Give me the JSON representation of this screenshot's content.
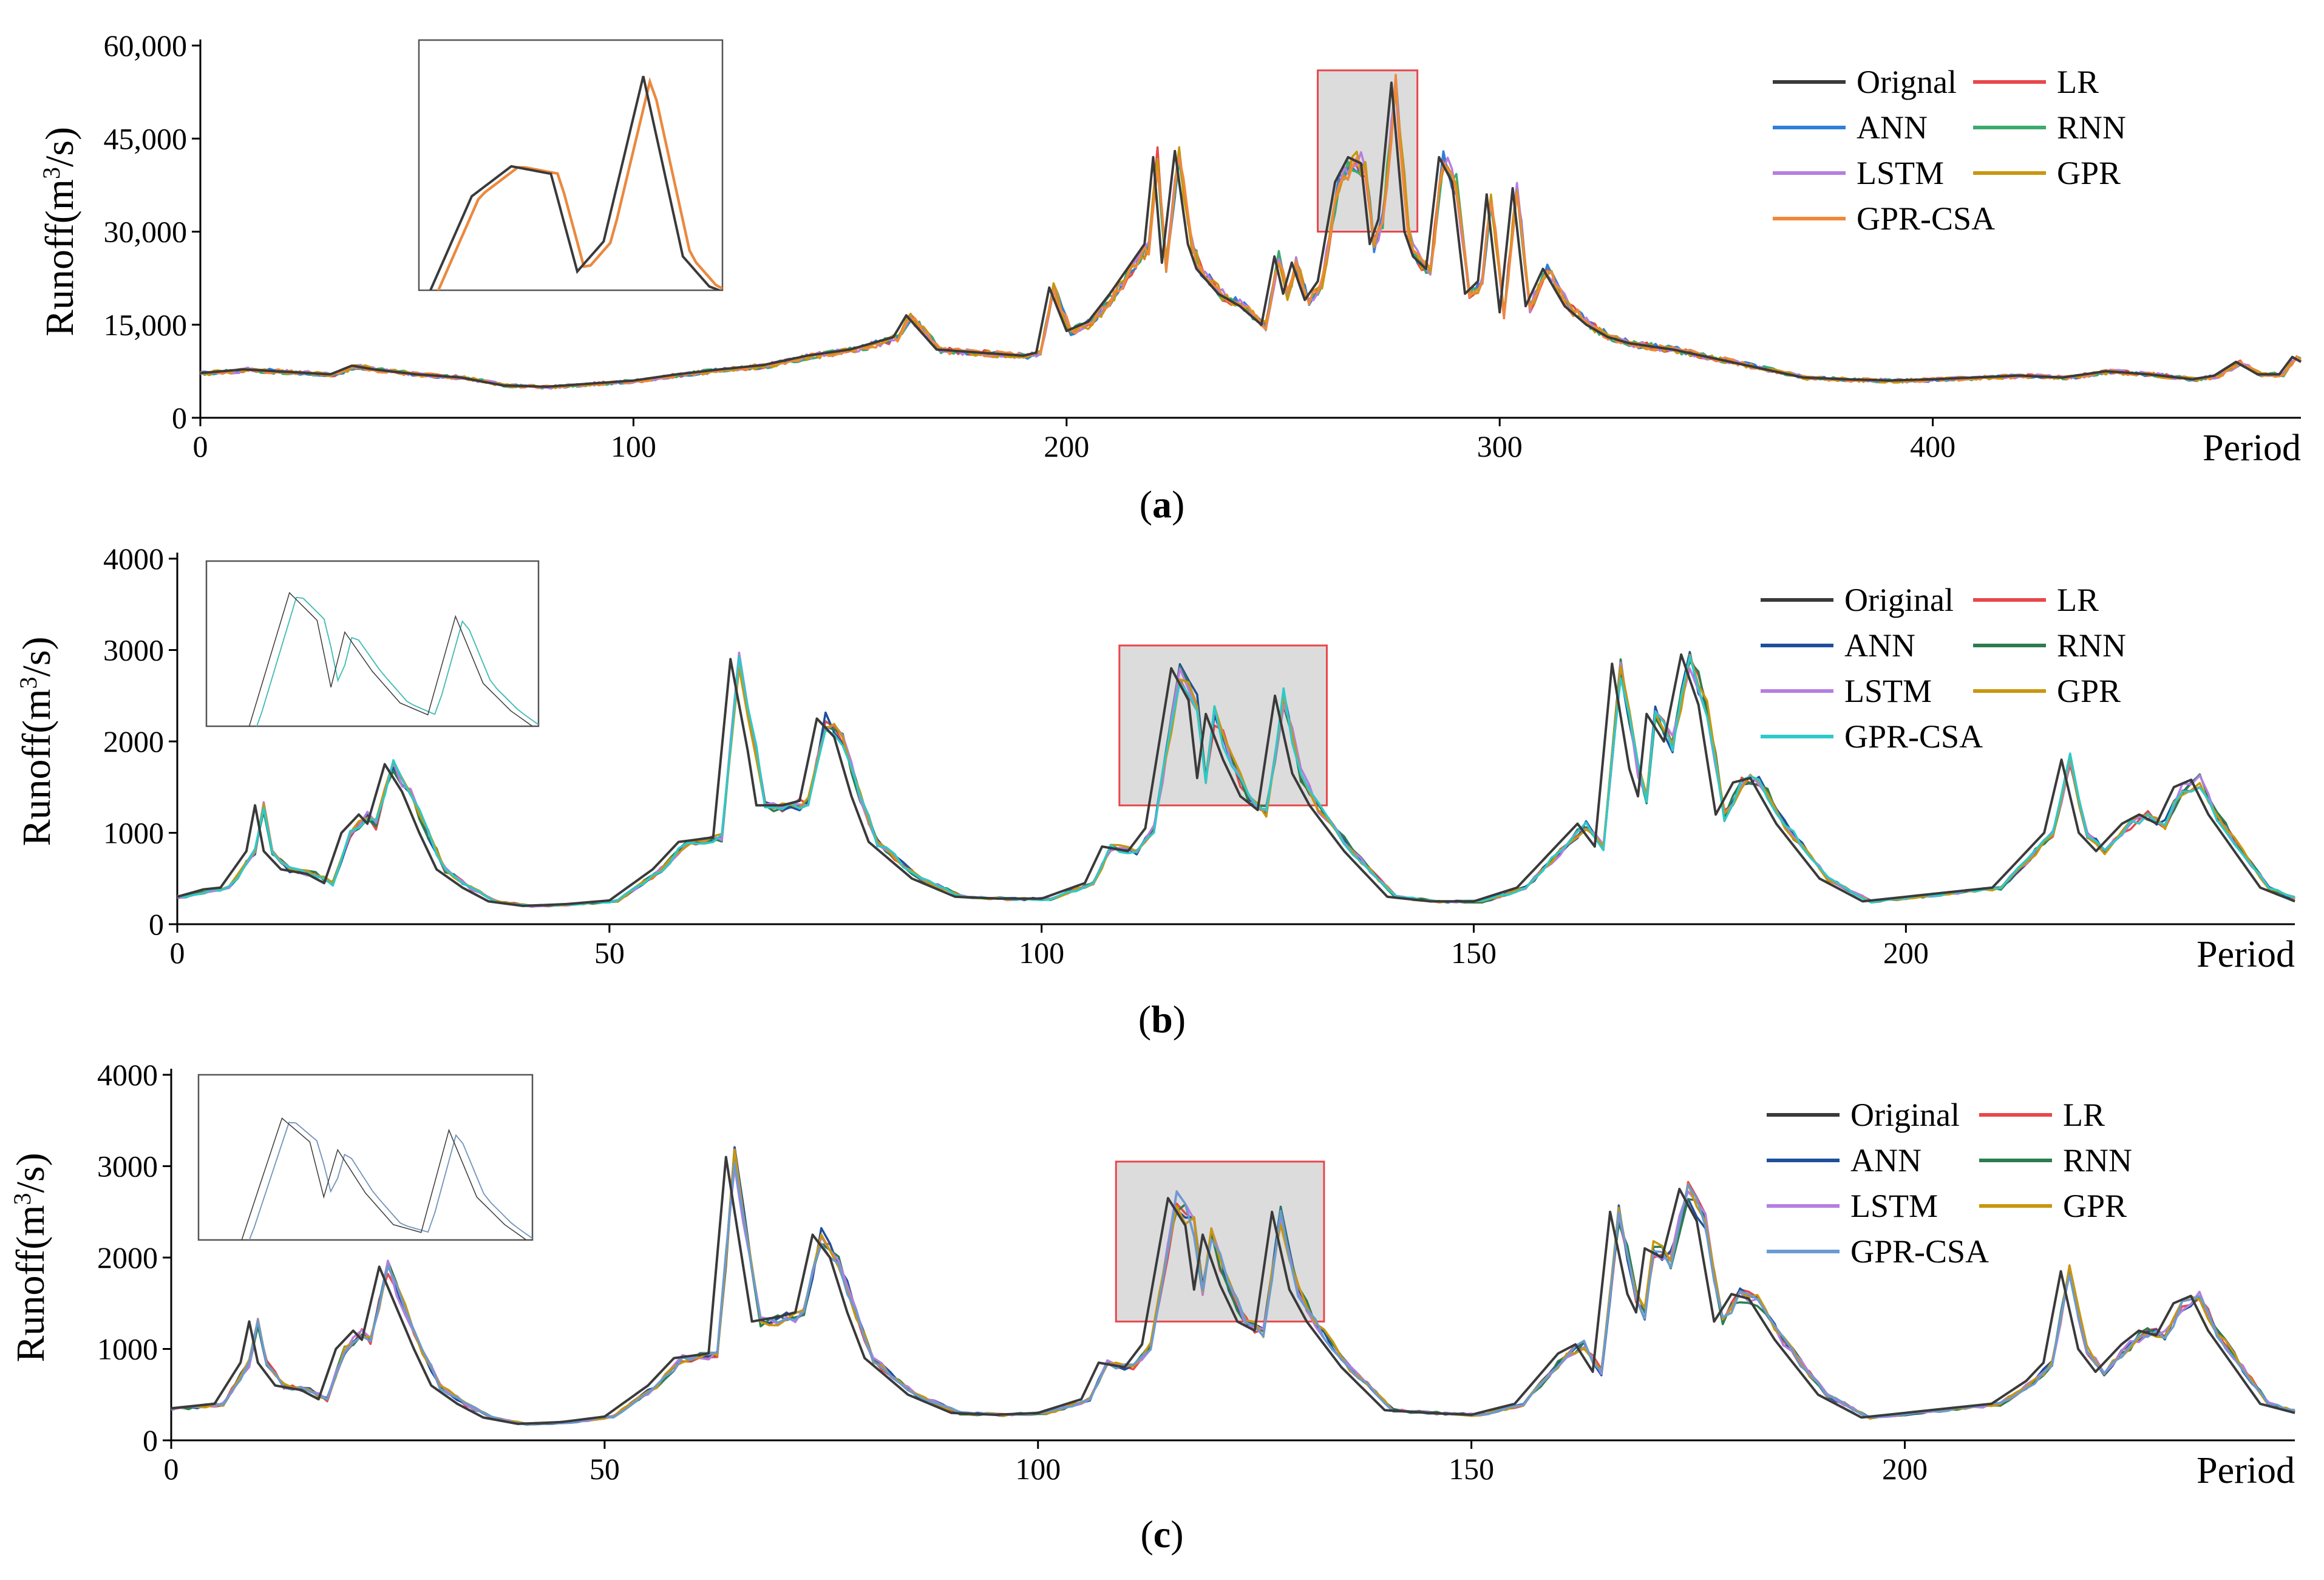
{
  "figure": {
    "panels": [
      {
        "id": "a",
        "caption_letter": "a",
        "ylabel_prefix": "Runoff(m",
        "ylabel_sup": "3",
        "ylabel_suffix": "/s)",
        "xlabel": "Period"
      },
      {
        "id": "b",
        "caption_letter": "b",
        "ylabel_prefix": "Runoff(m",
        "ylabel_sup": "3",
        "ylabel_suffix": "/s)",
        "xlabel": "Period"
      },
      {
        "id": "c",
        "caption_letter": "c",
        "ylabel_prefix": "Runoff(m",
        "ylabel_sup": "3",
        "ylabel_suffix": "/s)",
        "xlabel": "Period"
      }
    ]
  },
  "colors": {
    "Original": "#3a3a3a",
    "LR": "#e8474b",
    "ANN_a": "#2f7fd8",
    "ANN_bc": "#1f4e9c",
    "RNN_a": "#3aaa6e",
    "RNN_bc": "#2b7d4f",
    "LSTM": "#b57ee0",
    "GPR": "#c9960e",
    "GPR-CSA_a": "#f0883a",
    "GPR-CSA_b": "#2ec9c9",
    "GPR-CSA_c": "#6a9bd1",
    "highlight_fill": "#dcdcdc",
    "highlight_stroke": "#e8474b",
    "inset_border": "#555555"
  },
  "chart_data": [
    {
      "type": "line",
      "panel": "a",
      "title": "",
      "xlabel": "Period",
      "ylabel": "Runoff(m3/s)",
      "xlim": [
        0,
        485
      ],
      "ylim": [
        0,
        60000
      ],
      "xticks": [
        0,
        100,
        200,
        300,
        400
      ],
      "yticks": [
        0,
        15000,
        30000,
        45000,
        60000
      ],
      "ytick_labels": [
        "0",
        "15,000",
        "30,000",
        "45,000",
        "60,000"
      ],
      "series_names": [
        "Orignal",
        "LR",
        "ANN",
        "RNN",
        "LSTM",
        "GPR",
        "GPR-CSA"
      ],
      "legend": [
        "Orignal",
        "LR",
        "ANN",
        "RNN",
        "LSTM",
        "GPR",
        "GPR-CSA"
      ],
      "legend_position": "top-right",
      "highlight_x_range": [
        258,
        281
      ],
      "highlight_y_range": [
        30000,
        56000
      ],
      "original_keypoints": [
        [
          0,
          7200
        ],
        [
          10,
          7800
        ],
        [
          20,
          7400
        ],
        [
          30,
          7000
        ],
        [
          35,
          8400
        ],
        [
          40,
          7800
        ],
        [
          50,
          7000
        ],
        [
          60,
          6500
        ],
        [
          70,
          5200
        ],
        [
          80,
          5000
        ],
        [
          90,
          5500
        ],
        [
          100,
          6000
        ],
        [
          110,
          7000
        ],
        [
          120,
          7800
        ],
        [
          130,
          8500
        ],
        [
          140,
          10000
        ],
        [
          150,
          11000
        ],
        [
          160,
          13000
        ],
        [
          163,
          16500
        ],
        [
          170,
          11000
        ],
        [
          180,
          10500
        ],
        [
          190,
          10000
        ],
        [
          193,
          10500
        ],
        [
          196,
          21000
        ],
        [
          200,
          14000
        ],
        [
          205,
          15500
        ],
        [
          210,
          20000
        ],
        [
          215,
          25000
        ],
        [
          218,
          28000
        ],
        [
          220,
          42000
        ],
        [
          222,
          25000
        ],
        [
          225,
          43000
        ],
        [
          228,
          28000
        ],
        [
          230,
          24000
        ],
        [
          235,
          20000
        ],
        [
          240,
          18000
        ],
        [
          245,
          15000
        ],
        [
          248,
          26000
        ],
        [
          250,
          20000
        ],
        [
          252,
          25000
        ],
        [
          255,
          19000
        ],
        [
          258,
          22000
        ],
        [
          262,
          38000
        ],
        [
          265,
          42000
        ],
        [
          268,
          41000
        ],
        [
          270,
          28000
        ],
        [
          272,
          32000
        ],
        [
          275,
          54000
        ],
        [
          278,
          30000
        ],
        [
          280,
          26000
        ],
        [
          283,
          24000
        ],
        [
          286,
          42000
        ],
        [
          289,
          38000
        ],
        [
          292,
          20000
        ],
        [
          295,
          22000
        ],
        [
          297,
          36000
        ],
        [
          300,
          17000
        ],
        [
          303,
          37000
        ],
        [
          306,
          18000
        ],
        [
          310,
          24000
        ],
        [
          315,
          18000
        ],
        [
          320,
          15000
        ],
        [
          325,
          13000
        ],
        [
          330,
          12000
        ],
        [
          340,
          11000
        ],
        [
          350,
          9500
        ],
        [
          360,
          8000
        ],
        [
          370,
          6500
        ],
        [
          380,
          6200
        ],
        [
          390,
          6000
        ],
        [
          400,
          6200
        ],
        [
          410,
          6500
        ],
        [
          420,
          6800
        ],
        [
          430,
          6500
        ],
        [
          440,
          7500
        ],
        [
          450,
          7000
        ],
        [
          460,
          6200
        ],
        [
          465,
          6800
        ],
        [
          470,
          9000
        ],
        [
          475,
          7000
        ],
        [
          480,
          7000
        ],
        [
          483,
          9800
        ],
        [
          485,
          9000
        ]
      ],
      "inset_series_sample": "zoomed view of highlighted range"
    },
    {
      "type": "line",
      "panel": "b",
      "title": "",
      "xlabel": "Period",
      "ylabel": "Runoff(m3/s)",
      "xlim": [
        0,
        245
      ],
      "ylim": [
        0,
        4000
      ],
      "xticks": [
        0,
        50,
        100,
        150,
        200
      ],
      "yticks": [
        0,
        1000,
        2000,
        3000,
        4000
      ],
      "ytick_labels": [
        "0",
        "1000",
        "2000",
        "3000",
        "4000"
      ],
      "series_names": [
        "Original",
        "LR",
        "ANN",
        "RNN",
        "LSTM",
        "GPR",
        "GPR-CSA"
      ],
      "legend": [
        "Original",
        "LR",
        "ANN",
        "RNN",
        "LSTM",
        "GPR",
        "GPR-CSA"
      ],
      "legend_position": "top-right",
      "highlight_x_range": [
        109,
        133
      ],
      "highlight_y_range": [
        1300,
        3050
      ],
      "original_keypoints": [
        [
          0,
          300
        ],
        [
          3,
          380
        ],
        [
          5,
          400
        ],
        [
          8,
          800
        ],
        [
          9,
          1300
        ],
        [
          10,
          800
        ],
        [
          12,
          600
        ],
        [
          15,
          550
        ],
        [
          17,
          450
        ],
        [
          19,
          1000
        ],
        [
          21,
          1200
        ],
        [
          22,
          1100
        ],
        [
          24,
          1750
        ],
        [
          26,
          1450
        ],
        [
          28,
          1000
        ],
        [
          30,
          600
        ],
        [
          33,
          400
        ],
        [
          36,
          250
        ],
        [
          40,
          200
        ],
        [
          45,
          220
        ],
        [
          50,
          260
        ],
        [
          55,
          600
        ],
        [
          58,
          900
        ],
        [
          62,
          950
        ],
        [
          64,
          2900
        ],
        [
          66,
          1900
        ],
        [
          67,
          1300
        ],
        [
          70,
          1300
        ],
        [
          72,
          1350
        ],
        [
          74,
          2250
        ],
        [
          76,
          2050
        ],
        [
          78,
          1400
        ],
        [
          80,
          900
        ],
        [
          85,
          500
        ],
        [
          90,
          300
        ],
        [
          95,
          280
        ],
        [
          100,
          280
        ],
        [
          105,
          450
        ],
        [
          107,
          850
        ],
        [
          110,
          800
        ],
        [
          112,
          1050
        ],
        [
          115,
          2800
        ],
        [
          117,
          2450
        ],
        [
          118,
          1600
        ],
        [
          119,
          2300
        ],
        [
          121,
          1800
        ],
        [
          123,
          1400
        ],
        [
          125,
          1250
        ],
        [
          127,
          2500
        ],
        [
          129,
          1650
        ],
        [
          131,
          1300
        ],
        [
          135,
          800
        ],
        [
          140,
          300
        ],
        [
          145,
          250
        ],
        [
          150,
          250
        ],
        [
          155,
          400
        ],
        [
          160,
          900
        ],
        [
          162,
          1100
        ],
        [
          164,
          850
        ],
        [
          166,
          2850
        ],
        [
          168,
          1700
        ],
        [
          169,
          1400
        ],
        [
          170,
          2300
        ],
        [
          172,
          2000
        ],
        [
          174,
          2950
        ],
        [
          176,
          2400
        ],
        [
          178,
          1200
        ],
        [
          180,
          1550
        ],
        [
          182,
          1600
        ],
        [
          185,
          1100
        ],
        [
          190,
          500
        ],
        [
          195,
          250
        ],
        [
          200,
          300
        ],
        [
          205,
          350
        ],
        [
          210,
          400
        ],
        [
          214,
          800
        ],
        [
          216,
          1000
        ],
        [
          218,
          1800
        ],
        [
          220,
          1000
        ],
        [
          222,
          800
        ],
        [
          225,
          1100
        ],
        [
          227,
          1200
        ],
        [
          229,
          1100
        ],
        [
          231,
          1500
        ],
        [
          233,
          1580
        ],
        [
          235,
          1200
        ],
        [
          238,
          800
        ],
        [
          241,
          400
        ],
        [
          245,
          250
        ]
      ]
    },
    {
      "type": "line",
      "panel": "c",
      "title": "",
      "xlabel": "Period",
      "ylabel": "Runoff(m3/s)",
      "xlim": [
        0,
        245
      ],
      "ylim": [
        0,
        4000
      ],
      "xticks": [
        0,
        50,
        100,
        150,
        200
      ],
      "yticks": [
        0,
        1000,
        2000,
        3000,
        4000
      ],
      "ytick_labels": [
        "0",
        "1000",
        "2000",
        "3000",
        "4000"
      ],
      "series_names": [
        "Original",
        "LR",
        "ANN",
        "RNN",
        "LSTM",
        "GPR",
        "GPR-CSA"
      ],
      "legend": [
        "Original",
        "LR",
        "ANN",
        "RNN",
        "LSTM",
        "GPR",
        "GPR-CSA"
      ],
      "legend_position": "top-right",
      "highlight_x_range": [
        109,
        133
      ],
      "highlight_y_range": [
        1300,
        3050
      ],
      "original_keypoints": [
        [
          0,
          350
        ],
        [
          3,
          380
        ],
        [
          5,
          400
        ],
        [
          8,
          850
        ],
        [
          9,
          1300
        ],
        [
          10,
          850
        ],
        [
          12,
          600
        ],
        [
          15,
          550
        ],
        [
          17,
          450
        ],
        [
          19,
          1000
        ],
        [
          21,
          1200
        ],
        [
          22,
          1100
        ],
        [
          24,
          1900
        ],
        [
          26,
          1450
        ],
        [
          28,
          1000
        ],
        [
          30,
          600
        ],
        [
          33,
          400
        ],
        [
          36,
          250
        ],
        [
          40,
          180
        ],
        [
          45,
          200
        ],
        [
          50,
          260
        ],
        [
          55,
          600
        ],
        [
          58,
          900
        ],
        [
          62,
          950
        ],
        [
          64,
          3100
        ],
        [
          66,
          1900
        ],
        [
          67,
          1300
        ],
        [
          70,
          1350
        ],
        [
          72,
          1400
        ],
        [
          74,
          2250
        ],
        [
          76,
          2000
        ],
        [
          78,
          1400
        ],
        [
          80,
          900
        ],
        [
          85,
          500
        ],
        [
          90,
          300
        ],
        [
          95,
          280
        ],
        [
          100,
          300
        ],
        [
          105,
          450
        ],
        [
          107,
          850
        ],
        [
          110,
          800
        ],
        [
          112,
          1050
        ],
        [
          115,
          2650
        ],
        [
          117,
          2350
        ],
        [
          118,
          1650
        ],
        [
          119,
          2250
        ],
        [
          121,
          1700
        ],
        [
          123,
          1300
        ],
        [
          125,
          1200
        ],
        [
          127,
          2500
        ],
        [
          129,
          1650
        ],
        [
          131,
          1300
        ],
        [
          135,
          800
        ],
        [
          140,
          330
        ],
        [
          145,
          300
        ],
        [
          150,
          280
        ],
        [
          155,
          400
        ],
        [
          160,
          950
        ],
        [
          162,
          1050
        ],
        [
          164,
          750
        ],
        [
          166,
          2500
        ],
        [
          168,
          1600
        ],
        [
          169,
          1400
        ],
        [
          170,
          2100
        ],
        [
          172,
          2000
        ],
        [
          174,
          2750
        ],
        [
          176,
          2400
        ],
        [
          178,
          1300
        ],
        [
          180,
          1600
        ],
        [
          182,
          1550
        ],
        [
          185,
          1100
        ],
        [
          190,
          500
        ],
        [
          195,
          250
        ],
        [
          200,
          300
        ],
        [
          205,
          350
        ],
        [
          210,
          400
        ],
        [
          214,
          650
        ],
        [
          216,
          850
        ],
        [
          218,
          1850
        ],
        [
          220,
          1000
        ],
        [
          222,
          750
        ],
        [
          225,
          1050
        ],
        [
          227,
          1200
        ],
        [
          229,
          1150
        ],
        [
          231,
          1500
        ],
        [
          233,
          1580
        ],
        [
          235,
          1200
        ],
        [
          238,
          800
        ],
        [
          241,
          400
        ],
        [
          245,
          300
        ]
      ]
    }
  ]
}
